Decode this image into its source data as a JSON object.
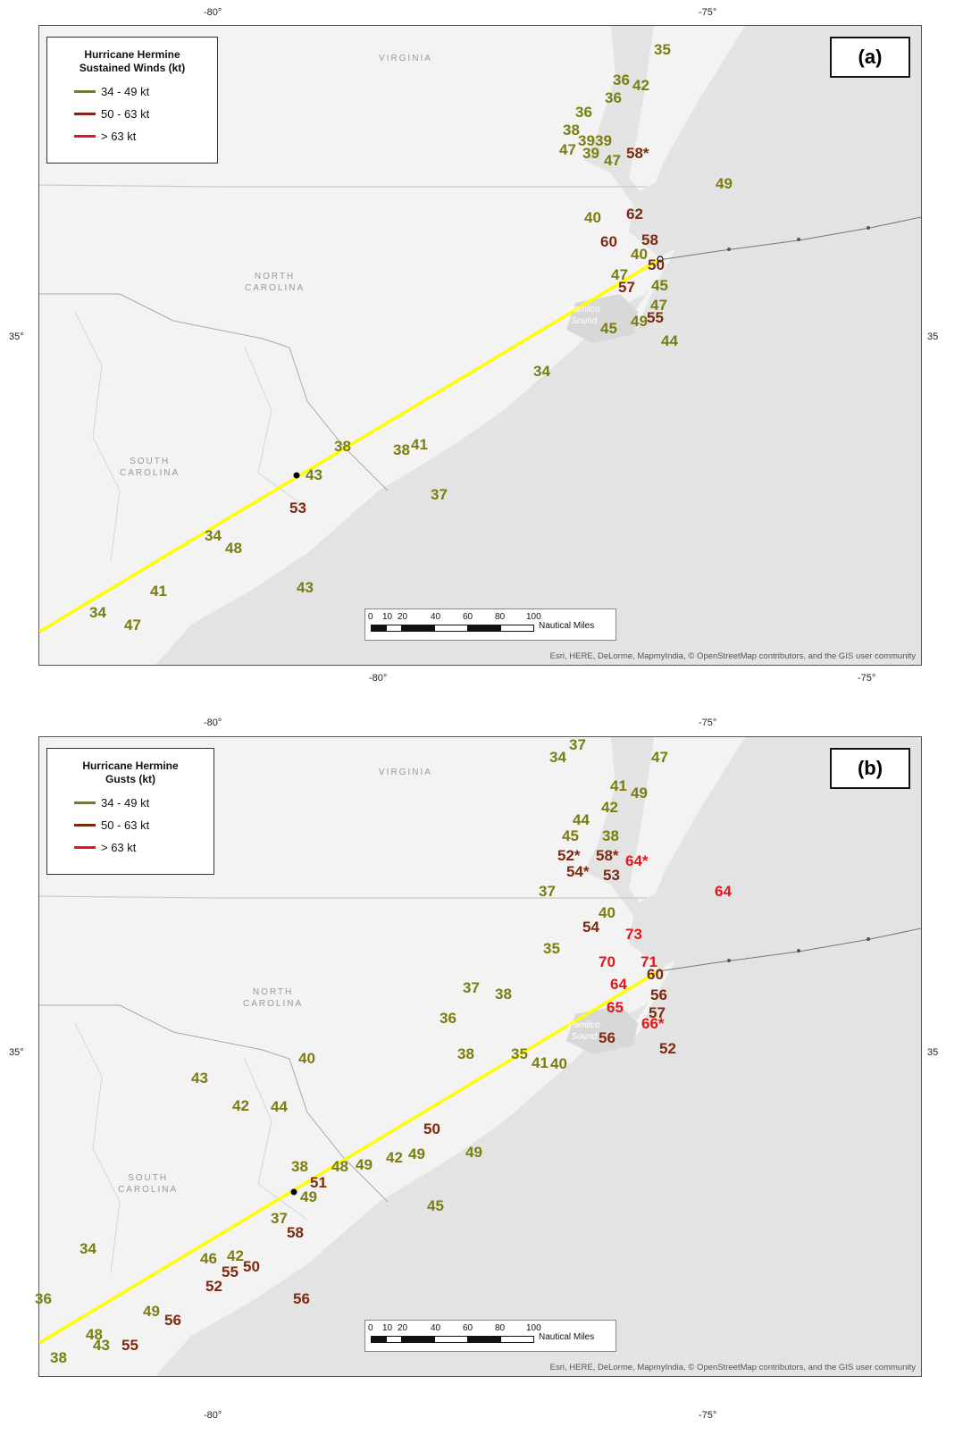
{
  "ticks": {
    "lon_w": "-80°",
    "lon_e": "-75°",
    "lat": "35°",
    "lat_right": "35"
  },
  "places": {
    "virginia": "VIRGINIA",
    "north_carolina": "NORTH\nCAROLINA",
    "south_carolina": "SOUTH\nCAROLINA",
    "pamlico_sound": "Pamlico\nSound"
  },
  "legend_colors": {
    "green": "#7a7d10",
    "brown": "#7c2a10",
    "red": "#e1171b"
  },
  "track_color": "#ffff00",
  "scale": {
    "labels": [
      "0",
      "10",
      "20",
      "40",
      "60",
      "80",
      "100"
    ],
    "unit": "Nautical Miles"
  },
  "attribution": "Esri, HERE, DeLorme, MapmyIndia, © OpenStreetMap contributors, and the GIS user community",
  "panels": [
    {
      "label": "(a)",
      "legend": {
        "title": "Hurricane Hermine\nSustained Winds (kt)",
        "items": [
          "34 - 49 kt",
          "50 - 63 kt",
          "> 63 kt"
        ]
      },
      "observations": [
        {
          "v": "35",
          "c": "green"
        },
        {
          "v": "36",
          "c": "green"
        },
        {
          "v": "42",
          "c": "green"
        },
        {
          "v": "36",
          "c": "green"
        },
        {
          "v": "36",
          "c": "green"
        },
        {
          "v": "38",
          "c": "green"
        },
        {
          "v": "39",
          "c": "green"
        },
        {
          "v": "39",
          "c": "green"
        },
        {
          "v": "47",
          "c": "green"
        },
        {
          "v": "39",
          "c": "green"
        },
        {
          "v": "47",
          "c": "green"
        },
        {
          "v": "58*",
          "c": "brown"
        },
        {
          "v": "49",
          "c": "green"
        },
        {
          "v": "40",
          "c": "green"
        },
        {
          "v": "62",
          "c": "brown"
        },
        {
          "v": "60",
          "c": "brown"
        },
        {
          "v": "58",
          "c": "brown"
        },
        {
          "v": "40",
          "c": "green"
        },
        {
          "v": "50",
          "c": "brown"
        },
        {
          "v": "47",
          "c": "green"
        },
        {
          "v": "57",
          "c": "brown"
        },
        {
          "v": "45",
          "c": "green"
        },
        {
          "v": "47",
          "c": "green"
        },
        {
          "v": "49",
          "c": "green"
        },
        {
          "v": "55",
          "c": "brown"
        },
        {
          "v": "45",
          "c": "green"
        },
        {
          "v": "44",
          "c": "green"
        },
        {
          "v": "34",
          "c": "green"
        },
        {
          "v": "38",
          "c": "green"
        },
        {
          "v": "38",
          "c": "green"
        },
        {
          "v": "41",
          "c": "green"
        },
        {
          "v": "43",
          "c": "green"
        },
        {
          "v": "37",
          "c": "green"
        },
        {
          "v": "53",
          "c": "brown"
        },
        {
          "v": "34",
          "c": "green"
        },
        {
          "v": "48",
          "c": "green"
        },
        {
          "v": "41",
          "c": "green"
        },
        {
          "v": "43",
          "c": "green"
        },
        {
          "v": "34",
          "c": "green"
        },
        {
          "v": "47",
          "c": "green"
        }
      ]
    },
    {
      "label": "(b)",
      "legend": {
        "title": "Hurricane Hermine\nGusts (kt)",
        "items": [
          "34 - 49 kt",
          "50 - 63 kt",
          "> 63 kt"
        ]
      },
      "observations": [
        {
          "v": "37",
          "c": "green"
        },
        {
          "v": "34",
          "c": "green"
        },
        {
          "v": "47",
          "c": "green"
        },
        {
          "v": "41",
          "c": "green"
        },
        {
          "v": "49",
          "c": "green"
        },
        {
          "v": "42",
          "c": "green"
        },
        {
          "v": "44",
          "c": "green"
        },
        {
          "v": "45",
          "c": "green"
        },
        {
          "v": "38",
          "c": "green"
        },
        {
          "v": "52*",
          "c": "brown"
        },
        {
          "v": "58*",
          "c": "brown"
        },
        {
          "v": "64*",
          "c": "red"
        },
        {
          "v": "54*",
          "c": "brown"
        },
        {
          "v": "53",
          "c": "brown"
        },
        {
          "v": "37",
          "c": "green"
        },
        {
          "v": "64",
          "c": "red"
        },
        {
          "v": "40",
          "c": "green"
        },
        {
          "v": "54",
          "c": "brown"
        },
        {
          "v": "73",
          "c": "red"
        },
        {
          "v": "35",
          "c": "green"
        },
        {
          "v": "70",
          "c": "red"
        },
        {
          "v": "71",
          "c": "red"
        },
        {
          "v": "60",
          "c": "brown"
        },
        {
          "v": "64",
          "c": "red"
        },
        {
          "v": "56",
          "c": "brown"
        },
        {
          "v": "37",
          "c": "green"
        },
        {
          "v": "38",
          "c": "green"
        },
        {
          "v": "65",
          "c": "red"
        },
        {
          "v": "57",
          "c": "brown"
        },
        {
          "v": "36",
          "c": "green"
        },
        {
          "v": "66*",
          "c": "red"
        },
        {
          "v": "56",
          "c": "brown"
        },
        {
          "v": "52",
          "c": "brown"
        },
        {
          "v": "35",
          "c": "green"
        },
        {
          "v": "38",
          "c": "green"
        },
        {
          "v": "41",
          "c": "green"
        },
        {
          "v": "40",
          "c": "green"
        },
        {
          "v": "40",
          "c": "green"
        },
        {
          "v": "43",
          "c": "green"
        },
        {
          "v": "42",
          "c": "green"
        },
        {
          "v": "44",
          "c": "green"
        },
        {
          "v": "50",
          "c": "brown"
        },
        {
          "v": "49",
          "c": "green"
        },
        {
          "v": "38",
          "c": "green"
        },
        {
          "v": "48",
          "c": "green"
        },
        {
          "v": "49",
          "c": "green"
        },
        {
          "v": "42",
          "c": "green"
        },
        {
          "v": "49",
          "c": "green"
        },
        {
          "v": "51",
          "c": "brown"
        },
        {
          "v": "49",
          "c": "green"
        },
        {
          "v": "45",
          "c": "green"
        },
        {
          "v": "37",
          "c": "green"
        },
        {
          "v": "58",
          "c": "brown"
        },
        {
          "v": "34",
          "c": "green"
        },
        {
          "v": "46",
          "c": "green"
        },
        {
          "v": "42",
          "c": "green"
        },
        {
          "v": "55",
          "c": "brown"
        },
        {
          "v": "50",
          "c": "brown"
        },
        {
          "v": "52",
          "c": "brown"
        },
        {
          "v": "56",
          "c": "brown"
        },
        {
          "v": "36",
          "c": "green"
        },
        {
          "v": "49",
          "c": "green"
        },
        {
          "v": "56",
          "c": "brown"
        },
        {
          "v": "48",
          "c": "green"
        },
        {
          "v": "43",
          "c": "green"
        },
        {
          "v": "55",
          "c": "brown"
        },
        {
          "v": "38",
          "c": "green"
        }
      ]
    }
  ]
}
